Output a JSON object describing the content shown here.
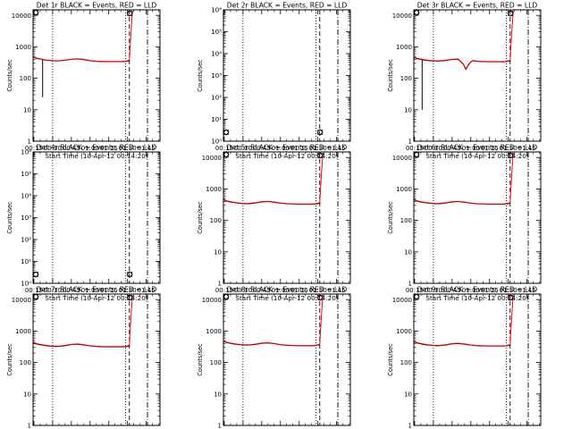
{
  "figure": {
    "ticks_x": [
      "00:15",
      "00:30",
      "00:45",
      "01:00",
      "01:15",
      "01:30",
      "01:45"
    ],
    "ticks_x_values_min": [
      15,
      30,
      45,
      60,
      75,
      90,
      105
    ],
    "xlim_min": [
      14.33,
      116
    ],
    "xlabel": "Start Time (10-Apr-12 00:14:20)",
    "ylabel": "Counts/sec",
    "colors": {
      "events": "#000000",
      "lld": "#ff0000",
      "axes": "#000000",
      "background": "#ffffff"
    },
    "markers_min": {
      "dotted": [
        30,
        88.5
      ],
      "dashed": 91.5,
      "dashdot": 106
    }
  },
  "chart_data": [
    {
      "type": "line",
      "title": "Det 1r BLACK = Events, RED = LLD",
      "xlabel": "Start Time (10-Apr-12 00:14:20)",
      "ylabel": "Counts/sec",
      "yscale": "log",
      "ylim": [
        1,
        15000
      ],
      "ytick_labels": [
        "1",
        "10",
        "100",
        "1000",
        "10000"
      ],
      "ytick_values": [
        1,
        10,
        100,
        1000,
        10000
      ],
      "markers": [
        "D",
        "D"
      ],
      "series": [
        {
          "role": "events",
          "x": [
            14.3,
            16,
            18,
            20,
            22,
            25,
            28,
            30,
            33,
            36,
            40,
            45,
            50,
            55,
            60,
            65,
            70,
            75,
            80,
            85,
            88,
            90,
            91.5
          ],
          "y": [
            480,
            440,
            420,
            410,
            390,
            370,
            365,
            360,
            355,
            360,
            370,
            400,
            410,
            390,
            360,
            345,
            340,
            335,
            335,
            335,
            340,
            350,
            360
          ],
          "dip": {
            "x": 22,
            "y": 25
          }
        },
        {
          "role": "lld",
          "x": [
            14.3,
            16,
            18,
            20,
            22,
            25,
            28,
            30,
            33,
            36,
            40,
            45,
            50,
            55,
            60,
            65,
            70,
            75,
            80,
            85,
            88,
            90,
            91.5,
            92,
            93,
            94
          ],
          "y": [
            500,
            455,
            430,
            415,
            400,
            380,
            372,
            367,
            362,
            366,
            378,
            408,
            420,
            400,
            368,
            352,
            347,
            342,
            342,
            343,
            348,
            360,
            380,
            900,
            4000,
            14000
          ]
        }
      ]
    },
    {
      "type": "line",
      "title": "Det 2r BLACK = Events, RED = LLD",
      "xlabel": "Start Time (10-Apr-12 00:14:20)",
      "ylabel": "Counts/sec",
      "yscale": "log",
      "ylim": [
        1,
        1000000
      ],
      "ytick_labels": [
        "10⁰",
        "10¹",
        "10²",
        "10³",
        "10⁴",
        "10⁵",
        "10⁶"
      ],
      "ytick_values": [
        1,
        10,
        100,
        1000,
        10000,
        100000,
        1000000
      ],
      "markers": [
        "D",
        "D"
      ],
      "series": [
        {
          "role": "events",
          "x": [],
          "y": []
        },
        {
          "role": "lld",
          "x": [],
          "y": []
        }
      ]
    },
    {
      "type": "line",
      "title": "Det 3r BLACK = Events, RED = LLD",
      "xlabel": "Start Time (10-Apr-12 00:14:20)",
      "ylabel": "Counts/sec",
      "yscale": "log",
      "ylim": [
        1,
        15000
      ],
      "ytick_labels": [
        "1",
        "10",
        "100",
        "1000",
        "10000"
      ],
      "ytick_values": [
        1,
        10,
        100,
        1000,
        10000
      ],
      "markers": [
        "D",
        "D"
      ],
      "series": [
        {
          "role": "events",
          "x": [
            14.3,
            16,
            18,
            20,
            22,
            25,
            28,
            30,
            33,
            36,
            40,
            45,
            50,
            52,
            54,
            56,
            58,
            60,
            62,
            65,
            70,
            75,
            80,
            85,
            88,
            90,
            91.5
          ],
          "y": [
            470,
            430,
            410,
            400,
            385,
            365,
            360,
            355,
            350,
            355,
            365,
            395,
            400,
            330,
            280,
            190,
            260,
            330,
            360,
            345,
            338,
            333,
            333,
            333,
            338,
            348,
            358
          ],
          "dip": {
            "x": 21,
            "y": 10
          }
        },
        {
          "role": "lld",
          "x": [
            14.3,
            16,
            18,
            20,
            22,
            25,
            28,
            30,
            33,
            36,
            40,
            45,
            50,
            52,
            54,
            56,
            58,
            60,
            62,
            65,
            70,
            75,
            80,
            85,
            88,
            90,
            91.5,
            92,
            93,
            94
          ],
          "y": [
            490,
            448,
            425,
            412,
            398,
            378,
            370,
            365,
            360,
            364,
            375,
            404,
            412,
            340,
            290,
            200,
            270,
            340,
            370,
            352,
            345,
            340,
            340,
            342,
            347,
            358,
            378,
            900,
            4000,
            14000
          ]
        }
      ]
    },
    {
      "type": "line",
      "title": "Det 4r BLACK = Events, RED = LLD",
      "xlabel": "Start Time (10-Apr-12 00:14:20)",
      "ylabel": "Counts/sec",
      "yscale": "log",
      "ylim": [
        1,
        1000000
      ],
      "ytick_labels": [
        "10⁰",
        "10¹",
        "10²",
        "10³",
        "10⁴",
        "10⁵",
        "10⁶"
      ],
      "ytick_values": [
        1,
        10,
        100,
        1000,
        10000,
        100000,
        1000000
      ],
      "markers": [
        "D",
        "D"
      ],
      "series": [
        {
          "role": "events",
          "x": [],
          "y": []
        },
        {
          "role": "lld",
          "x": [],
          "y": []
        }
      ]
    },
    {
      "type": "line",
      "title": "Det 5r BLACK = Events, RED = LLD",
      "xlabel": "Start Time (10-Apr-12 00:14:20)",
      "ylabel": "Counts/sec",
      "yscale": "log",
      "ylim": [
        1,
        15000
      ],
      "ytick_labels": [
        "1",
        "10",
        "100",
        "1000",
        "10000"
      ],
      "ytick_values": [
        1,
        10,
        100,
        1000,
        10000
      ],
      "markers": [
        "D",
        "D"
      ],
      "series": [
        {
          "role": "events",
          "x": [
            14.3,
            16,
            18,
            20,
            22,
            25,
            28,
            30,
            33,
            36,
            40,
            45,
            50,
            55,
            60,
            65,
            70,
            75,
            80,
            85,
            88,
            90,
            91.5
          ],
          "y": [
            470,
            420,
            400,
            385,
            370,
            355,
            345,
            340,
            335,
            340,
            355,
            385,
            395,
            375,
            350,
            335,
            330,
            325,
            325,
            325,
            330,
            340,
            350
          ]
        },
        {
          "role": "lld",
          "x": [
            14.3,
            16,
            18,
            20,
            22,
            25,
            28,
            30,
            33,
            36,
            40,
            45,
            50,
            55,
            60,
            65,
            70,
            75,
            80,
            85,
            88,
            90,
            91.5,
            92,
            93,
            94
          ],
          "y": [
            490,
            435,
            412,
            397,
            382,
            365,
            355,
            350,
            345,
            350,
            364,
            395,
            405,
            385,
            358,
            342,
            337,
            332,
            332,
            334,
            339,
            350,
            370,
            900,
            4000,
            14000
          ]
        }
      ]
    },
    {
      "type": "line",
      "title": "Det 6r BLACK = Events, RED = LLD",
      "xlabel": "Start Time (10-Apr-12 00:14:20)",
      "ylabel": "Counts/sec",
      "yscale": "log",
      "ylim": [
        1,
        15000
      ],
      "ytick_labels": [
        "1",
        "10",
        "100",
        "1000",
        "10000"
      ],
      "ytick_values": [
        1,
        10,
        100,
        1000,
        10000
      ],
      "markers": [
        "D",
        "D"
      ],
      "series": [
        {
          "role": "events",
          "x": [
            14.3,
            16,
            18,
            20,
            22,
            25,
            28,
            30,
            33,
            36,
            40,
            45,
            50,
            55,
            60,
            65,
            70,
            75,
            80,
            85,
            88,
            90,
            91.5
          ],
          "y": [
            470,
            420,
            400,
            385,
            370,
            355,
            345,
            340,
            335,
            340,
            355,
            385,
            395,
            375,
            350,
            335,
            330,
            325,
            325,
            325,
            330,
            340,
            350
          ]
        },
        {
          "role": "lld",
          "x": [
            14.3,
            16,
            18,
            20,
            22,
            25,
            28,
            30,
            33,
            36,
            40,
            45,
            50,
            55,
            60,
            65,
            70,
            75,
            80,
            85,
            88,
            90,
            91.5,
            92,
            93,
            94
          ],
          "y": [
            490,
            435,
            412,
            397,
            382,
            365,
            355,
            350,
            345,
            350,
            364,
            395,
            405,
            385,
            358,
            342,
            337,
            332,
            332,
            334,
            339,
            350,
            370,
            900,
            4000,
            14000
          ]
        }
      ]
    },
    {
      "type": "line",
      "title": "Det 7r BLACK = Events, RED = LLD",
      "xlabel": "Start Time (10-Apr-12 00:14:20)",
      "ylabel": "Counts/sec",
      "yscale": "log",
      "ylim": [
        1,
        15000
      ],
      "ytick_labels": [
        "1",
        "10",
        "100",
        "1000",
        "10000"
      ],
      "ytick_values": [
        1,
        10,
        100,
        1000,
        10000
      ],
      "markers": [
        "D",
        "D"
      ],
      "series": [
        {
          "role": "events",
          "x": [
            14.3,
            16,
            18,
            20,
            22,
            25,
            28,
            30,
            33,
            36,
            40,
            45,
            50,
            55,
            60,
            65,
            70,
            75,
            80,
            85,
            88,
            90,
            91.5
          ],
          "y": [
            440,
            400,
            380,
            365,
            355,
            340,
            330,
            325,
            320,
            325,
            340,
            370,
            380,
            360,
            335,
            320,
            315,
            312,
            312,
            312,
            317,
            327,
            337
          ]
        },
        {
          "role": "lld",
          "x": [
            14.3,
            16,
            18,
            20,
            22,
            25,
            28,
            30,
            33,
            36,
            40,
            45,
            50,
            55,
            60,
            65,
            70,
            75,
            80,
            85,
            88,
            90,
            91.5,
            92,
            93,
            94
          ],
          "y": [
            460,
            415,
            392,
            377,
            366,
            350,
            340,
            335,
            330,
            335,
            350,
            380,
            390,
            370,
            343,
            328,
            323,
            320,
            320,
            321,
            326,
            337,
            357,
            900,
            4000,
            14000
          ]
        }
      ]
    },
    {
      "type": "line",
      "title": "Det 8r BLACK = Events, RED = LLD",
      "xlabel": "Start Time (10-Apr-12 00:14:20)",
      "ylabel": "Counts/sec",
      "yscale": "log",
      "ylim": [
        1,
        15000
      ],
      "ytick_labels": [
        "1",
        "10",
        "100",
        "1000",
        "10000"
      ],
      "ytick_values": [
        1,
        10,
        100,
        1000,
        10000
      ],
      "markers": [
        "D",
        "D"
      ],
      "series": [
        {
          "role": "events",
          "x": [
            14.3,
            16,
            18,
            20,
            22,
            25,
            28,
            30,
            33,
            36,
            40,
            45,
            50,
            55,
            60,
            65,
            70,
            75,
            80,
            85,
            88,
            90,
            91.5
          ],
          "y": [
            480,
            440,
            420,
            405,
            390,
            375,
            365,
            360,
            355,
            360,
            375,
            405,
            415,
            395,
            365,
            350,
            345,
            340,
            340,
            340,
            345,
            355,
            365
          ]
        },
        {
          "role": "lld",
          "x": [
            14.3,
            16,
            18,
            20,
            22,
            25,
            28,
            30,
            33,
            36,
            40,
            45,
            50,
            55,
            60,
            65,
            70,
            75,
            80,
            85,
            88,
            90,
            91.5,
            92,
            93,
            94
          ],
          "y": [
            500,
            455,
            432,
            417,
            402,
            386,
            375,
            370,
            365,
            370,
            386,
            416,
            426,
            405,
            373,
            357,
            352,
            347,
            347,
            348,
            353,
            364,
            384,
            900,
            4000,
            14000
          ]
        }
      ]
    },
    {
      "type": "line",
      "title": "Det 9r BLACK = Events, RED = LLD",
      "xlabel": "Start Time (10-Apr-12 00:14:20)",
      "ylabel": "Counts/sec",
      "yscale": "log",
      "ylim": [
        1,
        15000
      ],
      "ytick_labels": [
        "1",
        "10",
        "100",
        "1000",
        "10000"
      ],
      "ytick_values": [
        1,
        10,
        100,
        1000,
        10000
      ],
      "markers": [
        "D",
        "D"
      ],
      "series": [
        {
          "role": "events",
          "x": [
            14.3,
            16,
            18,
            20,
            22,
            25,
            28,
            30,
            33,
            36,
            40,
            45,
            50,
            55,
            60,
            65,
            70,
            75,
            80,
            85,
            88,
            90,
            91.5
          ],
          "y": [
            470,
            425,
            405,
            390,
            375,
            360,
            350,
            345,
            340,
            345,
            360,
            390,
            400,
            380,
            355,
            340,
            335,
            330,
            330,
            330,
            335,
            345,
            355
          ]
        },
        {
          "role": "lld",
          "x": [
            14.3,
            16,
            18,
            20,
            22,
            25,
            28,
            30,
            33,
            36,
            40,
            45,
            50,
            55,
            60,
            65,
            70,
            75,
            80,
            85,
            88,
            90,
            91.5,
            92,
            93,
            94
          ],
          "y": [
            490,
            440,
            418,
            402,
            387,
            371,
            361,
            356,
            351,
            356,
            371,
            401,
            411,
            390,
            363,
            348,
            343,
            338,
            338,
            339,
            344,
            355,
            375,
            900,
            4000,
            14000
          ]
        }
      ]
    }
  ]
}
